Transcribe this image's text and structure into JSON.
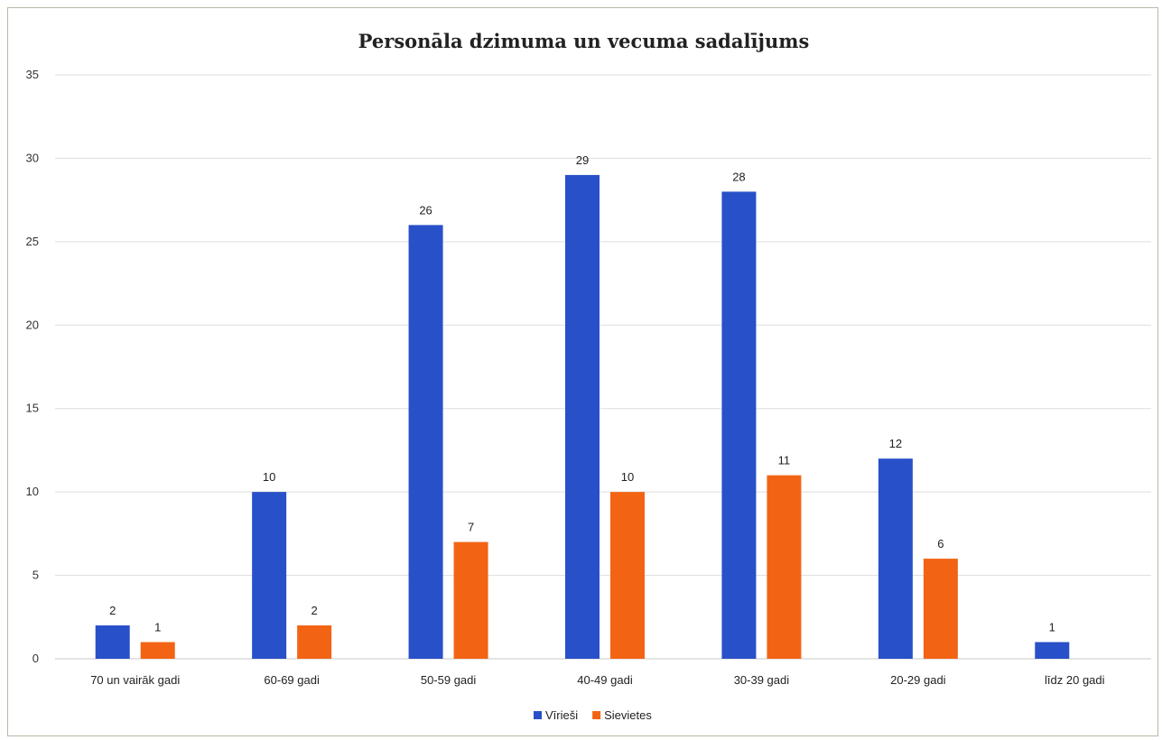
{
  "chart_data": {
    "type": "bar",
    "title": "Personāla dzimuma un vecuma sadalījums",
    "categories": [
      "70 un vairāk gadi",
      "60-69 gadi",
      "50-59 gadi",
      "40-49 gadi",
      "30-39 gadi",
      "20-29 gadi",
      "līdz 20 gadi"
    ],
    "series": [
      {
        "name": "Vīrieši",
        "color": "#2850c8",
        "values": [
          2,
          10,
          26,
          29,
          28,
          12,
          1
        ]
      },
      {
        "name": "Sievietes",
        "color": "#f26414",
        "values": [
          1,
          2,
          7,
          10,
          11,
          6,
          null
        ]
      }
    ],
    "ylim": [
      0,
      35
    ],
    "yticks": [
      0,
      5,
      10,
      15,
      20,
      25,
      30,
      35
    ],
    "grid": true,
    "legend": "bottom",
    "data_labels": true
  }
}
